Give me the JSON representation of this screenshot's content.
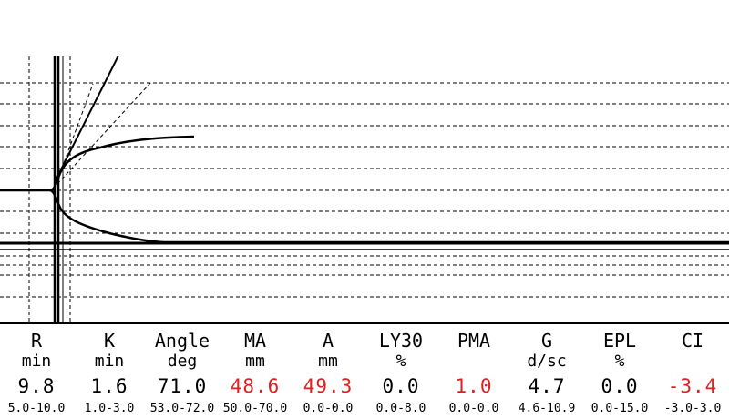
{
  "colors": {
    "normal": "#000000",
    "abnormal": "#e02020"
  },
  "params": [
    {
      "name": "R",
      "unit": "min",
      "value": "9.8",
      "ref": "5.0-10.0",
      "abnormal": false
    },
    {
      "name": "K",
      "unit": "min",
      "value": "1.6",
      "ref": "1.0-3.0",
      "abnormal": false
    },
    {
      "name": "Angle",
      "unit": "deg",
      "value": "71.0",
      "ref": "53.0-72.0",
      "abnormal": false
    },
    {
      "name": "MA",
      "unit": "mm",
      "value": "48.6",
      "ref": "50.0-70.0",
      "abnormal": true
    },
    {
      "name": "A",
      "unit": "mm",
      "value": "49.3",
      "ref": "0.0-0.0",
      "abnormal": true
    },
    {
      "name": "LY30",
      "unit": "%",
      "value": "0.0",
      "ref": "0.0-8.0",
      "abnormal": false
    },
    {
      "name": "PMA",
      "unit": "",
      "value": "1.0",
      "ref": "0.0-0.0",
      "abnormal": true
    },
    {
      "name": "G",
      "unit": "d/sc",
      "value": "4.7",
      "ref": "4.6-10.9",
      "abnormal": false
    },
    {
      "name": "EPL",
      "unit": "%",
      "value": "0.0",
      "ref": "0.0-15.0",
      "abnormal": false
    },
    {
      "name": "CI",
      "unit": "",
      "value": "-3.4",
      "ref": "-3.0-3.0",
      "abnormal": true
    }
  ]
}
